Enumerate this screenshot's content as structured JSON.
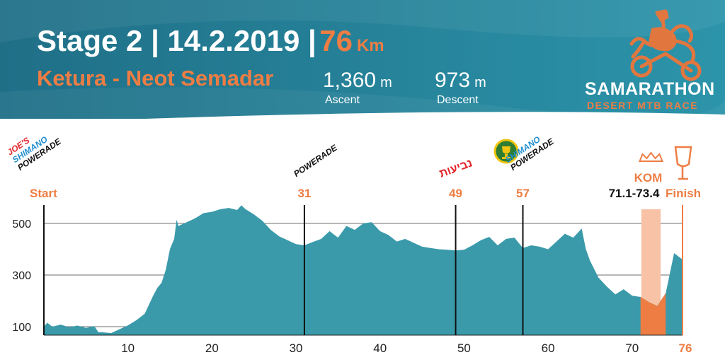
{
  "header": {
    "title": "Stage 2 | 14.2.2019 |",
    "distance": "76",
    "distance_unit": "Km",
    "route": "Ketura - Neot Semadar",
    "ascent_value": "1,360",
    "ascent_unit": "m",
    "ascent_label": "Ascent",
    "descent_value": "973",
    "descent_unit": "m",
    "descent_label": "Descent"
  },
  "logo": {
    "name": "SAMARATHON",
    "tagline": "DESERT MTB RACE",
    "icon": "camel-cyclist-icon"
  },
  "sponsors": {
    "start": [
      "JOE'S",
      "SHIMANO",
      "POWERADE"
    ],
    "km31": [
      "POWERADE"
    ],
    "km49": "נביעות",
    "km57": [
      "SHIMANO",
      "POWERADE"
    ]
  },
  "colors": {
    "header_bg": "#1e6e86",
    "profile_fill": "#3a9aaa",
    "accent": "#ee7d44",
    "kom_band": "#f8c2a6"
  },
  "chart_data": {
    "type": "area",
    "title": "",
    "xlabel": "",
    "ylabel": "",
    "xlim": [
      0,
      76
    ],
    "ylim": [
      60,
      580
    ],
    "x_ticks": [
      10,
      20,
      30,
      40,
      50,
      60,
      70
    ],
    "x_end_label": "76",
    "y_ticks": [
      100,
      300,
      500
    ],
    "grid": true,
    "series": [
      {
        "x": [
          0,
          0.4,
          1,
          2,
          3,
          4,
          5,
          6,
          6.5,
          7,
          8,
          9,
          10,
          11,
          12,
          13,
          13.5,
          14,
          14.5,
          15,
          15.5,
          15.8,
          16,
          17,
          18,
          19,
          20,
          21,
          22,
          23,
          23.5,
          24,
          25,
          26,
          27,
          28,
          29,
          30,
          31,
          32,
          33,
          34,
          35,
          36,
          37,
          38,
          39,
          40,
          41,
          42,
          43,
          44,
          45,
          46,
          47,
          48,
          49,
          50,
          51,
          52,
          53,
          54,
          55,
          56,
          57,
          58,
          59,
          60,
          61,
          62,
          63,
          64,
          64.5,
          65,
          66,
          67,
          68,
          69,
          70,
          71,
          72,
          73,
          74,
          75,
          76
        ],
        "y": [
          100,
          115,
          100,
          108,
          98,
          104,
          95,
          102,
          78,
          78,
          75,
          90,
          105,
          125,
          150,
          220,
          250,
          270,
          320,
          400,
          440,
          515,
          490,
          505,
          520,
          540,
          545,
          555,
          560,
          552,
          570,
          555,
          535,
          510,
          475,
          450,
          435,
          420,
          415,
          428,
          440,
          470,
          445,
          490,
          475,
          500,
          505,
          470,
          455,
          430,
          440,
          425,
          410,
          405,
          400,
          398,
          395,
          398,
          415,
          435,
          448,
          415,
          440,
          445,
          405,
          415,
          410,
          400,
          430,
          460,
          445,
          480,
          400,
          355,
          290,
          255,
          225,
          245,
          220,
          215,
          195,
          180,
          230,
          385,
          360
        ]
      }
    ],
    "markers": [
      {
        "x": 0,
        "label": "Start"
      },
      {
        "x": 31,
        "label": "31"
      },
      {
        "x": 49,
        "label": "49"
      },
      {
        "x": 57,
        "label": "57"
      },
      {
        "x": 76,
        "label": "Finish"
      }
    ],
    "kom": {
      "label": "KOM",
      "range_label": "71.1-73.4",
      "x_start": 71.1,
      "x_end": 73.4
    }
  }
}
